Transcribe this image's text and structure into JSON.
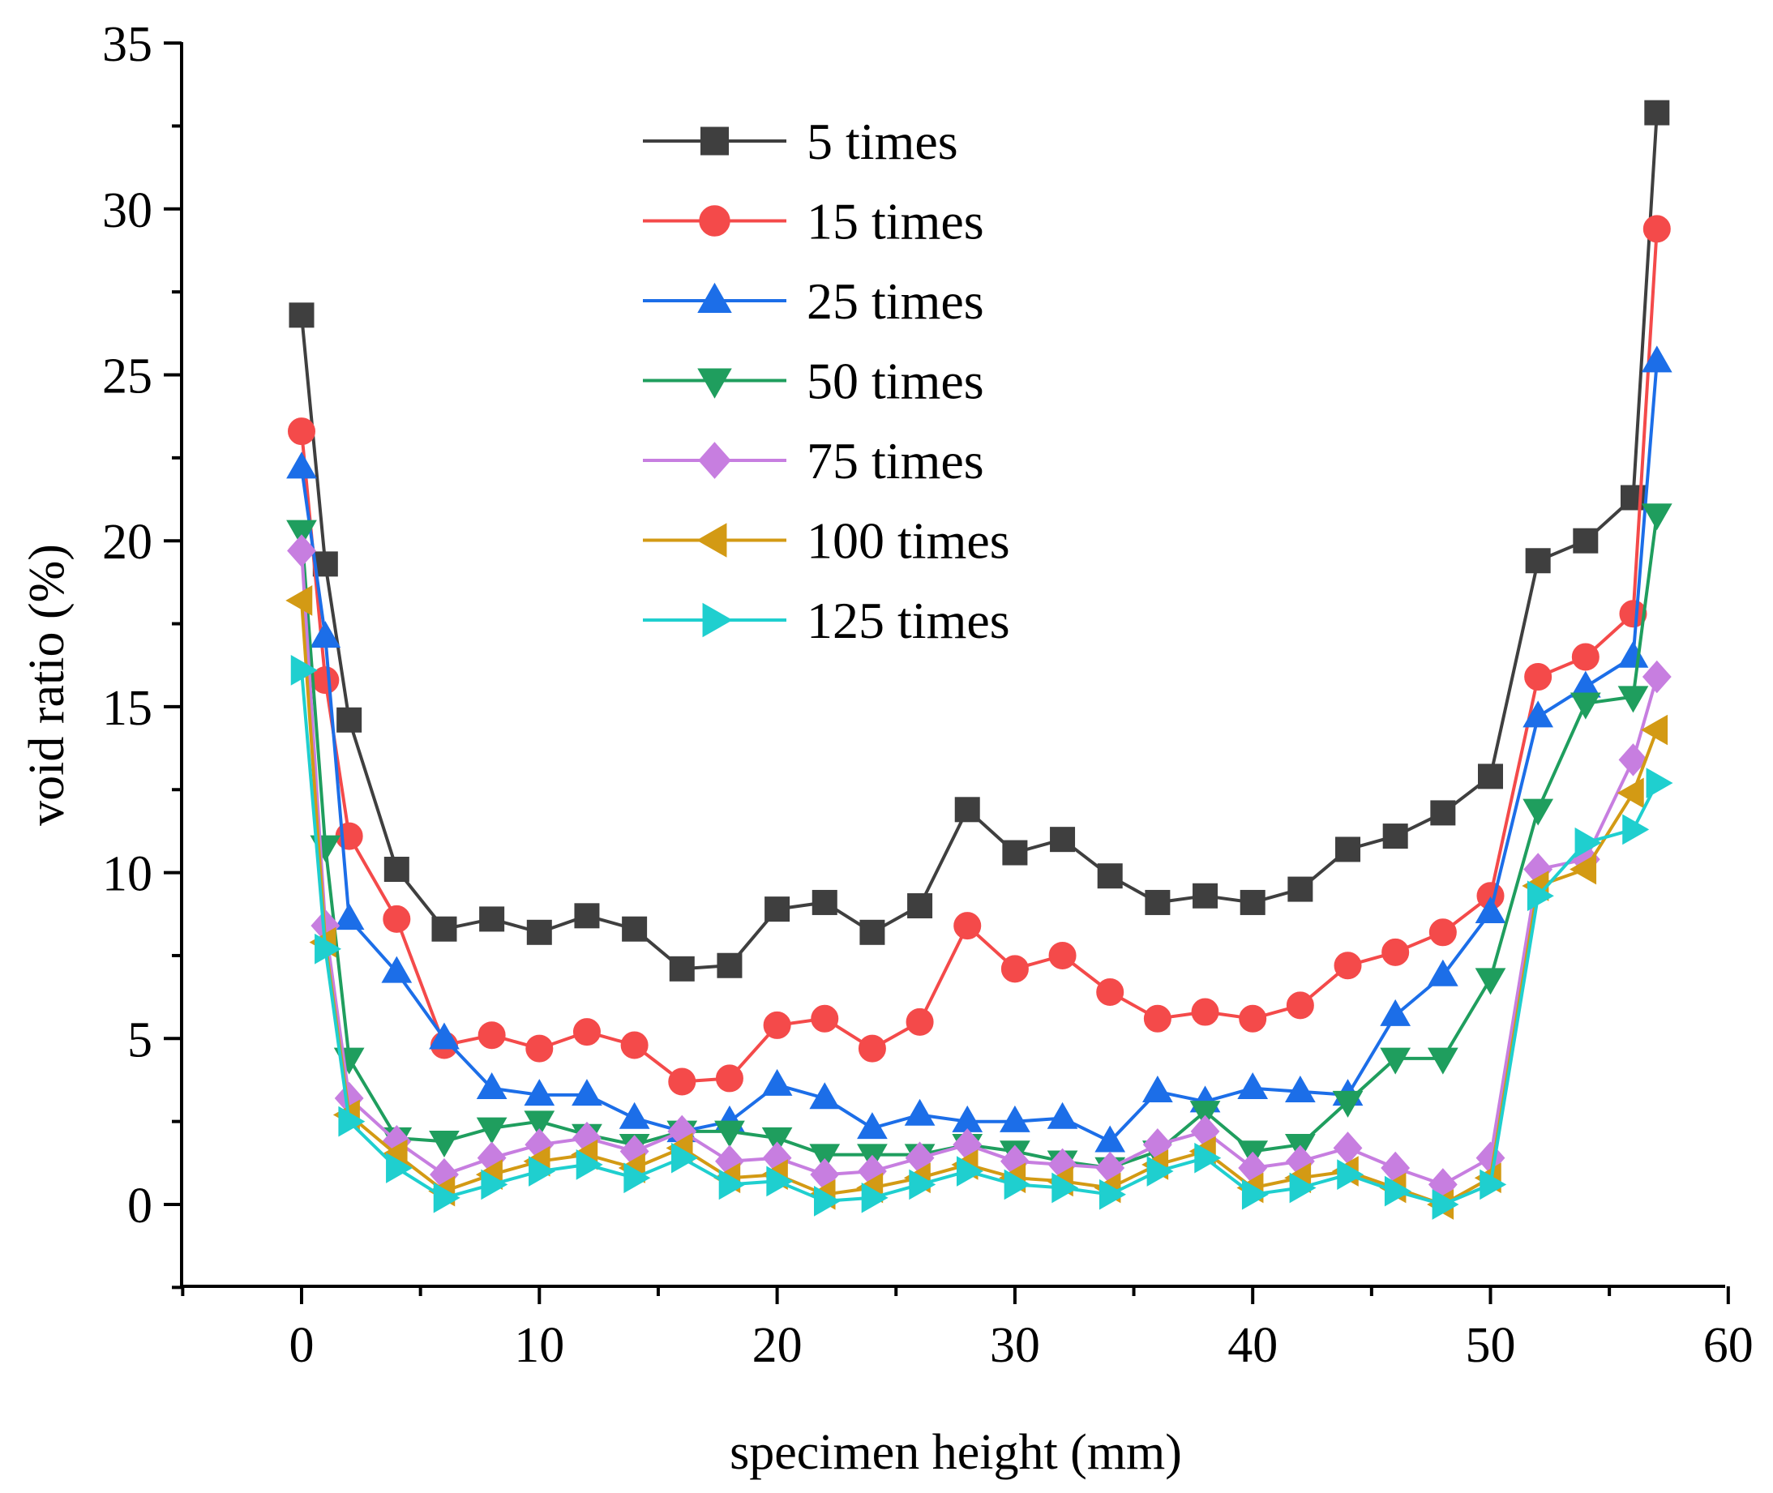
{
  "chart_data": {
    "type": "line",
    "title": "",
    "xlabel": "specimen height (mm)",
    "ylabel": "void ratio (%)",
    "xlim": [
      -5,
      60
    ],
    "ylim": [
      -2.5,
      35
    ],
    "xticks": [
      0,
      10,
      20,
      30,
      40,
      50,
      60
    ],
    "yticks": [
      0,
      5,
      10,
      15,
      20,
      25,
      30,
      35
    ],
    "grid": false,
    "legend_position": "top-center",
    "x": [
      0,
      1,
      2,
      4,
      6,
      8,
      10,
      12,
      14,
      16,
      18,
      20,
      22,
      24,
      26,
      28,
      30,
      32,
      34,
      36,
      38,
      40,
      42,
      44,
      46,
      48,
      50,
      52,
      54,
      56,
      57
    ],
    "series": [
      {
        "name": "5 times",
        "color": "#3f3f3f",
        "marker": "square",
        "values": [
          26.8,
          19.3,
          14.6,
          10.1,
          8.3,
          8.6,
          8.2,
          8.7,
          8.3,
          7.1,
          7.2,
          8.9,
          9.1,
          8.2,
          9.0,
          11.9,
          10.6,
          11.0,
          9.9,
          9.1,
          9.3,
          9.1,
          9.5,
          10.7,
          11.1,
          11.8,
          12.9,
          19.4,
          20.0,
          21.3,
          32.9
        ]
      },
      {
        "name": "15 times",
        "color": "#f44a4a",
        "marker": "circle",
        "values": [
          23.3,
          15.8,
          11.1,
          8.6,
          4.8,
          5.1,
          4.7,
          5.2,
          4.8,
          3.7,
          3.8,
          5.4,
          5.6,
          4.7,
          5.5,
          8.4,
          7.1,
          7.5,
          6.4,
          5.6,
          5.8,
          5.6,
          6.0,
          7.2,
          7.6,
          8.2,
          9.3,
          15.9,
          16.5,
          17.8,
          29.4
        ]
      },
      {
        "name": "25 times",
        "color": "#1c6ee8",
        "marker": "triangle-up",
        "values": [
          22.2,
          17.1,
          8.6,
          7.0,
          5.0,
          3.5,
          3.3,
          3.3,
          2.6,
          2.2,
          2.5,
          3.6,
          3.2,
          2.3,
          2.7,
          2.5,
          2.5,
          2.6,
          1.9,
          3.4,
          3.1,
          3.5,
          3.4,
          3.3,
          5.7,
          6.9,
          8.8,
          14.7,
          15.6,
          16.5,
          25.4
        ]
      },
      {
        "name": "50 times",
        "color": "#1f9e5e",
        "marker": "triangle-down",
        "values": [
          20.3,
          10.8,
          4.4,
          2.0,
          1.9,
          2.3,
          2.5,
          2.1,
          1.8,
          2.2,
          2.2,
          2.0,
          1.5,
          1.5,
          1.5,
          1.8,
          1.6,
          1.3,
          1.1,
          1.6,
          2.8,
          1.6,
          1.8,
          3.1,
          4.4,
          4.4,
          6.8,
          11.9,
          15.1,
          15.3,
          20.8
        ]
      },
      {
        "name": "75 times",
        "color": "#c77ee0",
        "marker": "diamond",
        "values": [
          19.7,
          8.4,
          3.2,
          1.9,
          0.9,
          1.4,
          1.8,
          2.0,
          1.6,
          2.2,
          1.3,
          1.4,
          0.9,
          1.0,
          1.4,
          1.8,
          1.3,
          1.2,
          1.1,
          1.8,
          2.2,
          1.1,
          1.3,
          1.7,
          1.1,
          0.6,
          1.4,
          10.1,
          10.4,
          13.4,
          15.9
        ]
      },
      {
        "name": "100 times",
        "color": "#d39a14",
        "marker": "triangle-left",
        "values": [
          18.2,
          7.9,
          2.7,
          1.5,
          0.4,
          0.9,
          1.3,
          1.5,
          1.1,
          1.7,
          0.8,
          0.9,
          0.3,
          0.5,
          0.8,
          1.2,
          0.8,
          0.7,
          0.5,
          1.2,
          1.6,
          0.5,
          0.8,
          1.0,
          0.5,
          0.0,
          0.8,
          9.6,
          10.1,
          12.4,
          14.3
        ]
      },
      {
        "name": "125 times",
        "color": "#1fcfcf",
        "marker": "triangle-right",
        "values": [
          16.1,
          7.7,
          2.5,
          1.1,
          0.2,
          0.6,
          1.0,
          1.2,
          0.8,
          1.4,
          0.6,
          0.7,
          0.1,
          0.2,
          0.6,
          1.0,
          0.6,
          0.5,
          0.3,
          1.0,
          1.4,
          0.3,
          0.5,
          0.9,
          0.4,
          0.0,
          0.6,
          9.3,
          10.9,
          11.3,
          12.7
        ]
      }
    ]
  }
}
